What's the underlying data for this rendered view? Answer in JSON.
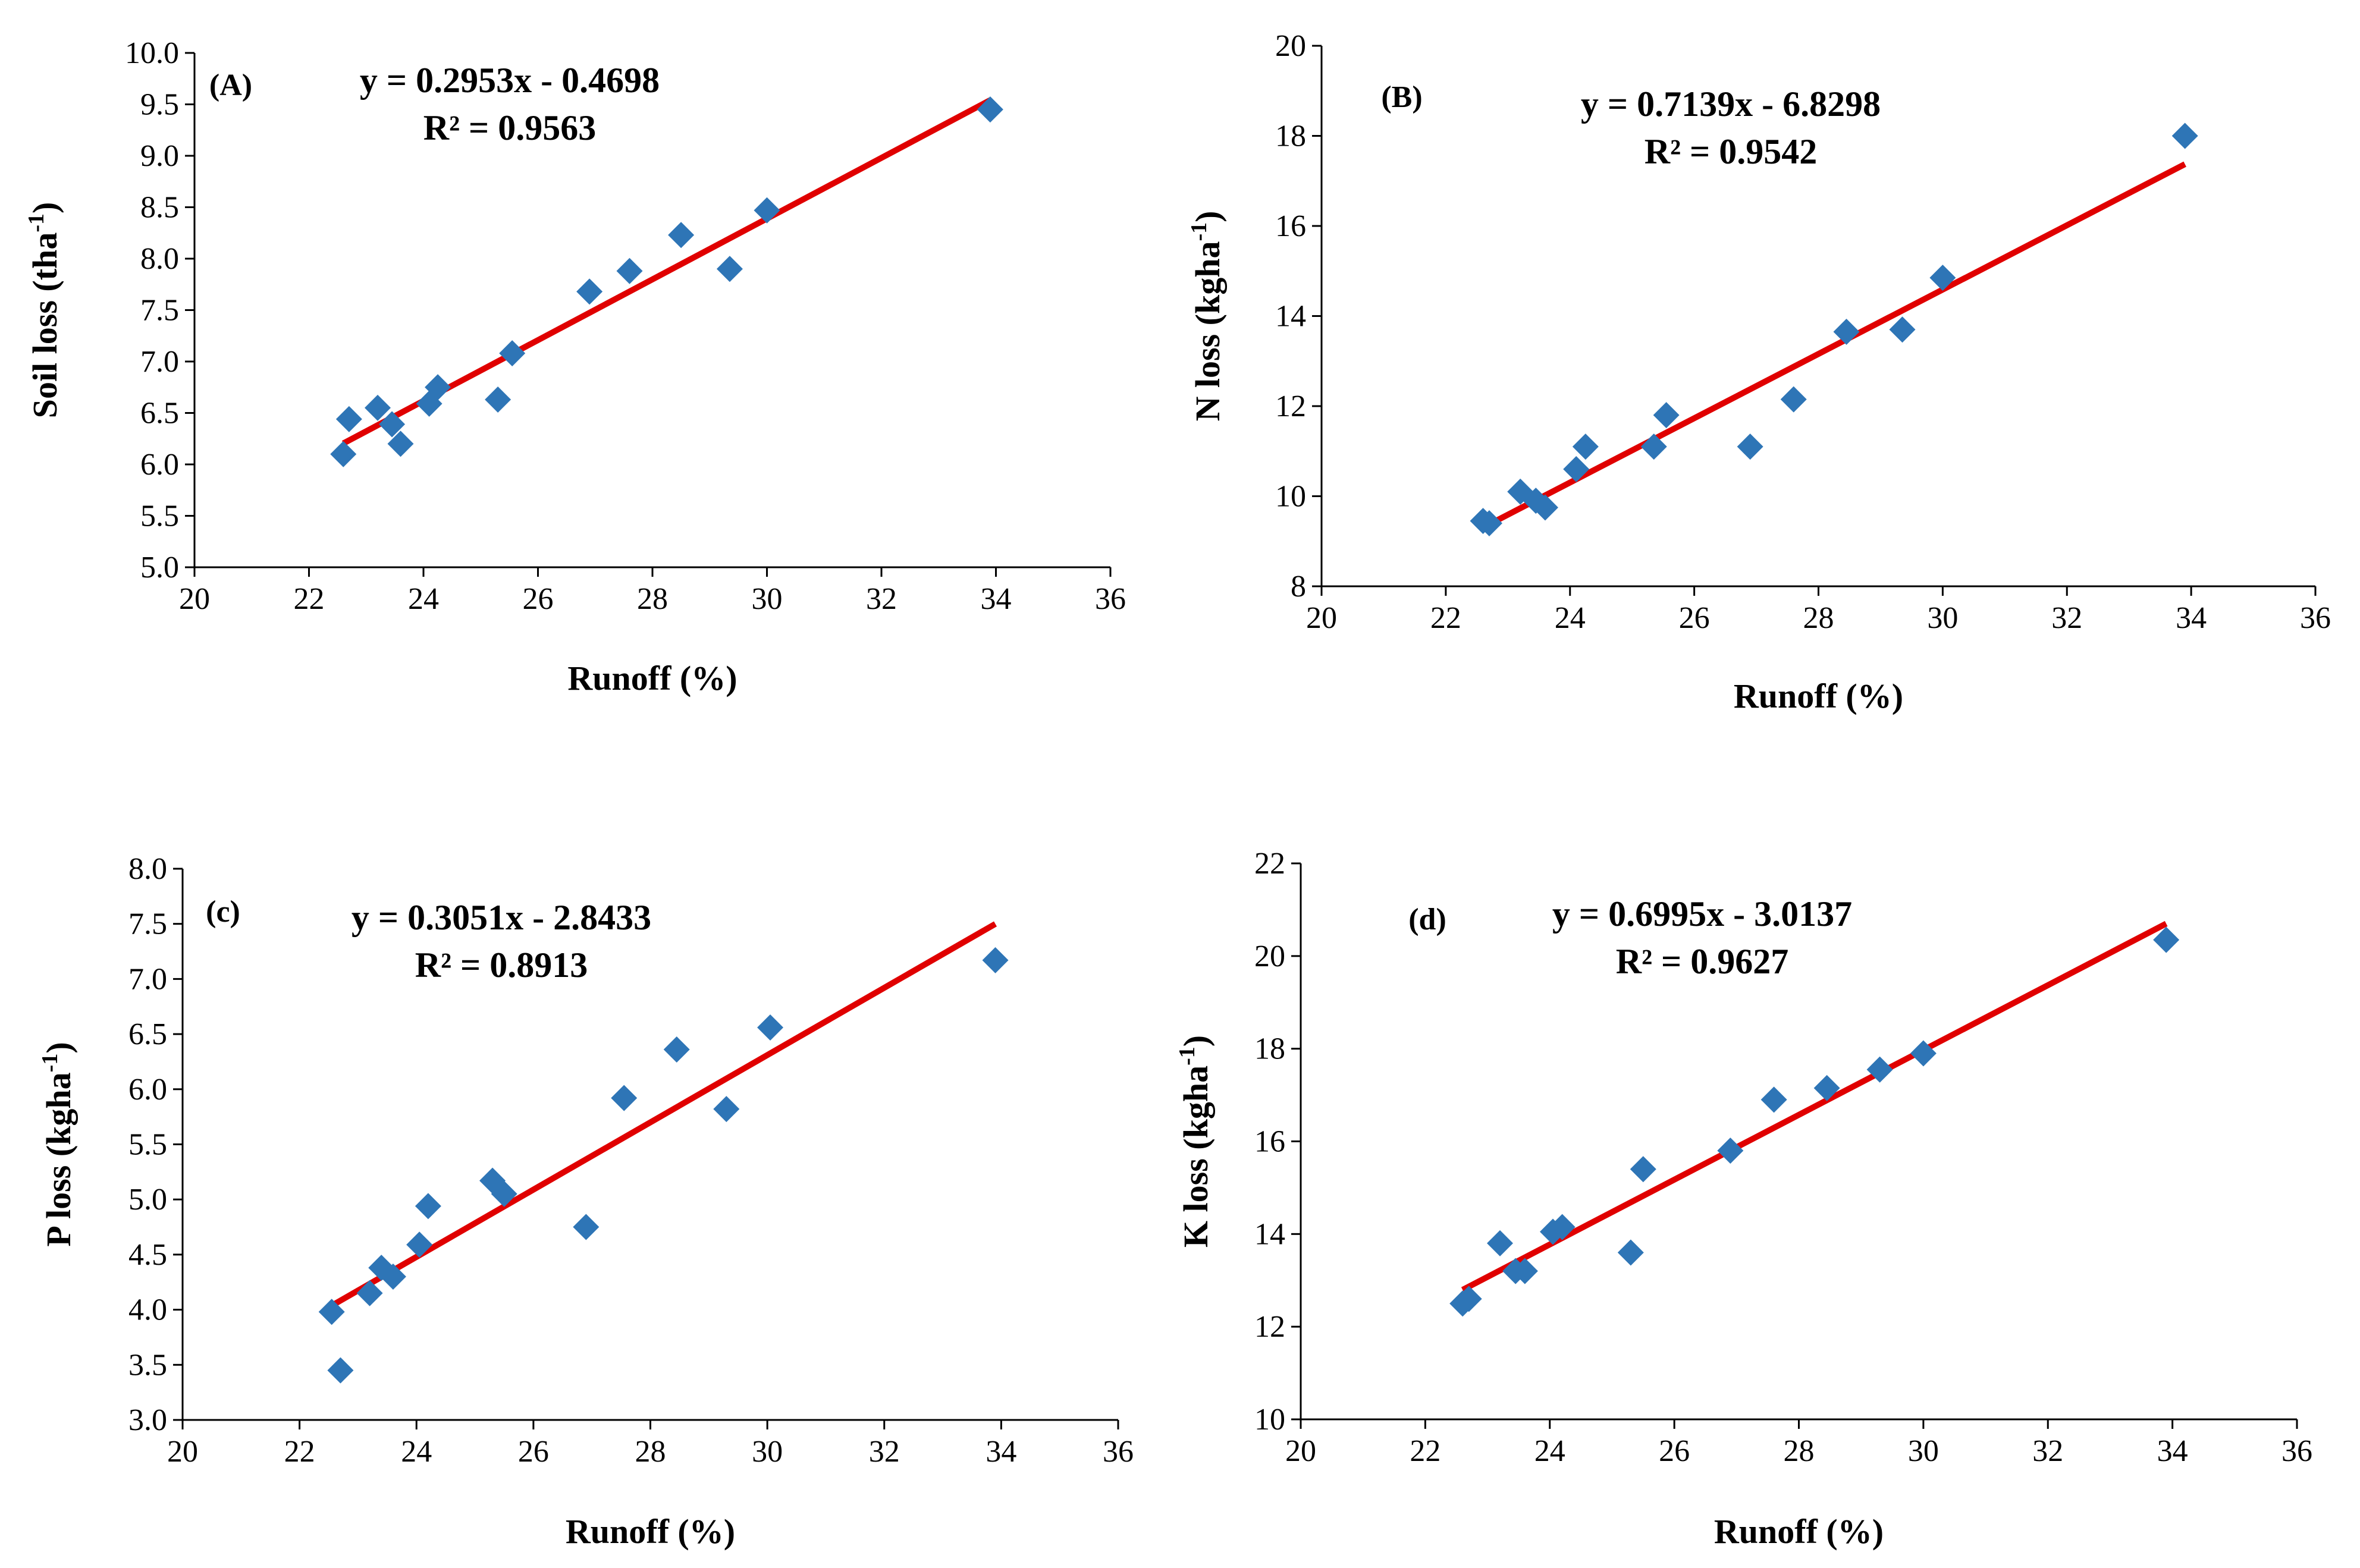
{
  "chart_data": [
    {
      "type": "scatter",
      "panel_label": "(A)",
      "xlabel": "Runoff (%)",
      "ylabel_main": "Soil loss (tha",
      "ylabel_sup": "-1",
      "ylabel_close": ")",
      "xlim": [
        20,
        36
      ],
      "ylim": [
        5.0,
        10.0
      ],
      "xticks": [
        "20",
        "22",
        "24",
        "26",
        "28",
        "30",
        "32",
        "34",
        "36"
      ],
      "yticks": [
        "5.0",
        "5.5",
        "6.0",
        "6.5",
        "7.0",
        "7.5",
        "8.0",
        "8.5",
        "9.0",
        "9.5",
        "10.0"
      ],
      "x": [
        22.6,
        22.7,
        23.2,
        23.45,
        23.6,
        24.1,
        24.25,
        25.3,
        25.55,
        26.9,
        27.6,
        28.5,
        29.35,
        30.0,
        33.9
      ],
      "y": [
        6.1,
        6.44,
        6.55,
        6.39,
        6.2,
        6.59,
        6.75,
        6.63,
        7.08,
        7.68,
        7.88,
        8.23,
        7.9,
        8.47,
        9.45
      ],
      "trendline": {
        "slope": 0.2953,
        "intercept": -0.4698,
        "x_start": 22.6,
        "x_end": 33.9
      },
      "equation": "y = 0.2953x - 0.4698",
      "r2": "R² = 0.9563",
      "marker_color": "#2E75B6",
      "trend_color": "#E00000"
    },
    {
      "type": "scatter",
      "panel_label": "(B)",
      "xlabel": "Runoff (%)",
      "ylabel_main": "N loss (kgha",
      "ylabel_sup": "-1",
      "ylabel_close": ")",
      "xlim": [
        20,
        36
      ],
      "ylim": [
        8,
        20
      ],
      "xticks": [
        "20",
        "22",
        "24",
        "26",
        "28",
        "30",
        "32",
        "34",
        "36"
      ],
      "yticks": [
        "8",
        "10",
        "12",
        "14",
        "16",
        "18",
        "20"
      ],
      "x": [
        22.6,
        22.7,
        23.2,
        23.45,
        23.6,
        24.1,
        24.25,
        25.35,
        25.55,
        26.9,
        27.6,
        28.45,
        29.35,
        30.0,
        33.9
      ],
      "y": [
        9.45,
        9.4,
        10.1,
        9.9,
        9.75,
        10.6,
        11.1,
        11.1,
        11.8,
        11.1,
        12.15,
        13.65,
        13.7,
        14.85,
        18.0
      ],
      "trendline": {
        "slope": 0.7139,
        "intercept": -6.8298,
        "x_start": 22.6,
        "x_end": 33.9
      },
      "equation": "y = 0.7139x - 6.8298",
      "r2": "R² = 0.9542",
      "marker_color": "#2E75B6",
      "trend_color": "#E00000"
    },
    {
      "type": "scatter",
      "panel_label": "(c)",
      "xlabel": "Runoff (%)",
      "ylabel_main": "P loss (kgha",
      "ylabel_sup": "-1",
      "ylabel_close": ")",
      "xlim": [
        20,
        36
      ],
      "ylim": [
        3.0,
        8.0
      ],
      "xticks": [
        "20",
        "22",
        "24",
        "26",
        "28",
        "30",
        "32",
        "34",
        "36"
      ],
      "yticks": [
        "3.0",
        "3.5",
        "4.0",
        "4.5",
        "5.0",
        "5.5",
        "6.0",
        "6.5",
        "7.0",
        "7.5",
        "8.0"
      ],
      "x": [
        22.55,
        22.7,
        23.2,
        23.4,
        23.6,
        24.05,
        24.2,
        25.3,
        25.5,
        26.9,
        27.55,
        28.45,
        29.3,
        30.05,
        33.9
      ],
      "y": [
        3.98,
        3.45,
        4.15,
        4.38,
        4.3,
        4.59,
        4.94,
        5.17,
        5.05,
        4.75,
        5.92,
        6.36,
        5.82,
        6.56,
        7.17
      ],
      "trendline": {
        "slope": 0.3051,
        "intercept": -2.8433,
        "x_start": 22.6,
        "x_end": 33.9
      },
      "equation": "y = 0.3051x - 2.8433",
      "r2": "R² = 0.8913",
      "marker_color": "#2E75B6",
      "trend_color": "#E00000"
    },
    {
      "type": "scatter",
      "panel_label": "(d)",
      "xlabel": "Runoff (%)",
      "ylabel_main": "K loss (kgha",
      "ylabel_sup": "-1",
      "ylabel_close": ")",
      "xlim": [
        20,
        36
      ],
      "ylim": [
        10,
        22
      ],
      "xticks": [
        "20",
        "22",
        "24",
        "26",
        "28",
        "30",
        "32",
        "34",
        "36"
      ],
      "yticks": [
        "10",
        "12",
        "14",
        "16",
        "18",
        "20",
        "22"
      ],
      "x": [
        22.6,
        22.7,
        23.2,
        23.45,
        23.6,
        24.05,
        24.2,
        25.3,
        25.5,
        26.9,
        27.6,
        28.45,
        29.3,
        30.0,
        33.9
      ],
      "y": [
        12.5,
        12.6,
        13.8,
        13.2,
        13.2,
        14.05,
        14.15,
        13.6,
        15.4,
        15.8,
        16.9,
        17.15,
        17.55,
        17.9,
        20.35
      ],
      "trendline": {
        "slope": 0.6995,
        "intercept": -3.0137,
        "x_start": 22.6,
        "x_end": 33.9
      },
      "equation": "y = 0.6995x - 3.0137",
      "r2": "R² = 0.9627",
      "marker_color": "#2E75B6",
      "trend_color": "#E00000"
    }
  ]
}
